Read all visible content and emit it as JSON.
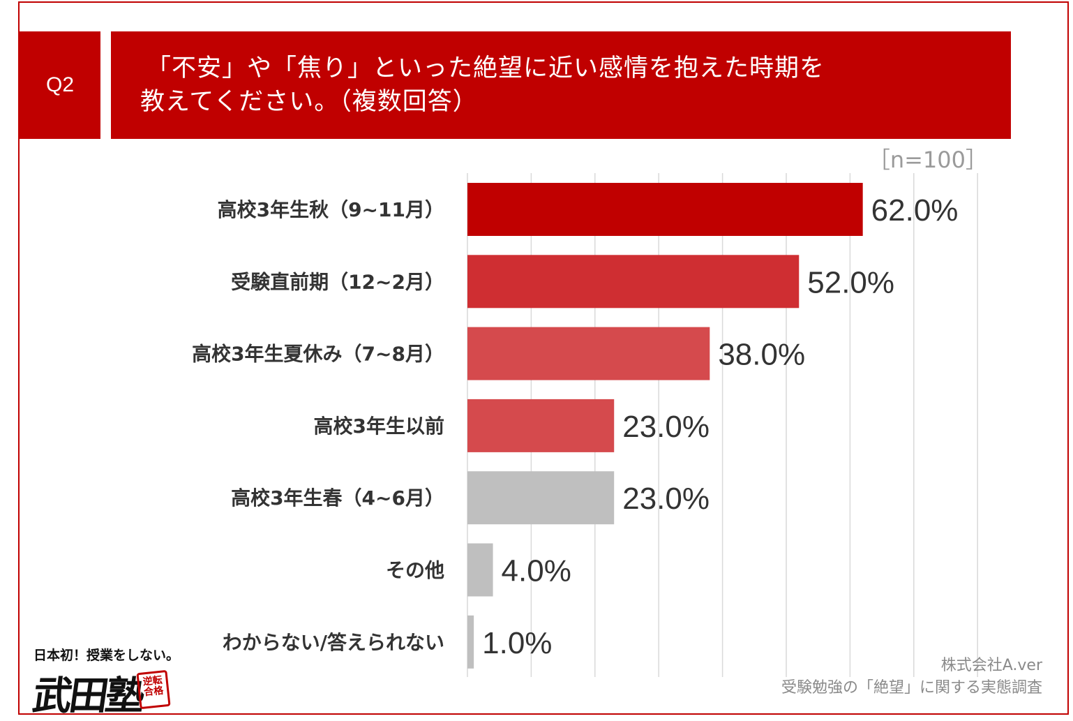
{
  "question": {
    "number": "Q2",
    "title_line1": "「不安」や「焦り」といった絶望に近い感情を抱えた時期を",
    "title_line2": "教えてください。（複数回答）"
  },
  "sample_size": "［n=100］",
  "colors": {
    "brand_red": "#c00000",
    "bar_shades": [
      "#c00000",
      "#cf2e32",
      "#d54a4d",
      "#d54a4d",
      "#bfbfbf",
      "#bfbfbf",
      "#bfbfbf"
    ],
    "text": "#333333",
    "gridline": "#d9d9d9"
  },
  "chart_data": {
    "type": "bar",
    "orientation": "horizontal",
    "categories": [
      "高校3年生秋（9~11月）",
      "受験直前期（12~2月）",
      "高校3年生夏休み（7~8月）",
      "高校3年生以前",
      "高校3年生春（4~6月）",
      "その他",
      "わからない/答えられない"
    ],
    "values": [
      62.0,
      52.0,
      38.0,
      23.0,
      23.0,
      4.0,
      1.0
    ],
    "value_labels": [
      "62.0%",
      "52.0%",
      "38.0%",
      "23.0%",
      "23.0%",
      "4.0%",
      "1.0%"
    ],
    "xlim": [
      0,
      80
    ],
    "grid": true,
    "unit": "%"
  },
  "footer": {
    "company": "株式会社A.ver",
    "survey": "受験勉強の「絶望」に関する実態調査"
  },
  "logo": {
    "tagline": "日本初！授業をしない。",
    "name": "武田塾",
    "seal": "逆転合格"
  }
}
